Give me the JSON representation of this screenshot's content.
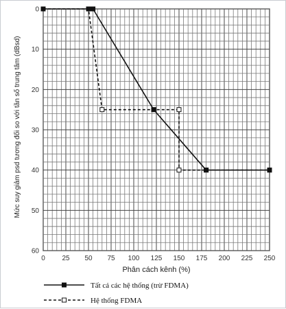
{
  "chart_data": {
    "type": "line",
    "title": "",
    "xlabel": "Phân cách kênh (%)",
    "ylabel": "Mức suy giảm psd tương đối so với tần số trung tâm (dBsd)",
    "xlim": [
      0,
      250
    ],
    "ylim": [
      0,
      60
    ],
    "y_inverted": true,
    "x_ticks": [
      0,
      25,
      50,
      75,
      100,
      125,
      150,
      175,
      200,
      225,
      250
    ],
    "y_ticks": [
      0,
      10,
      20,
      30,
      40,
      50,
      60
    ],
    "grid": true,
    "legend_position": "bottom",
    "series": [
      {
        "name": "Tất cả các hệ thống (trừ FDMA)",
        "style": "solid",
        "marker": "filled-square",
        "color": "#111111",
        "x": [
          0,
          50,
          55,
          122,
          180,
          250
        ],
        "y": [
          0,
          0,
          0,
          25,
          40,
          40
        ]
      },
      {
        "name": "Hệ thống FDMA",
        "style": "dashed",
        "marker": "open-square",
        "color": "#111111",
        "x": [
          0,
          50,
          65,
          122,
          150,
          150,
          180,
          250
        ],
        "y": [
          0,
          0,
          25,
          25,
          25,
          40,
          40,
          40
        ]
      }
    ]
  }
}
